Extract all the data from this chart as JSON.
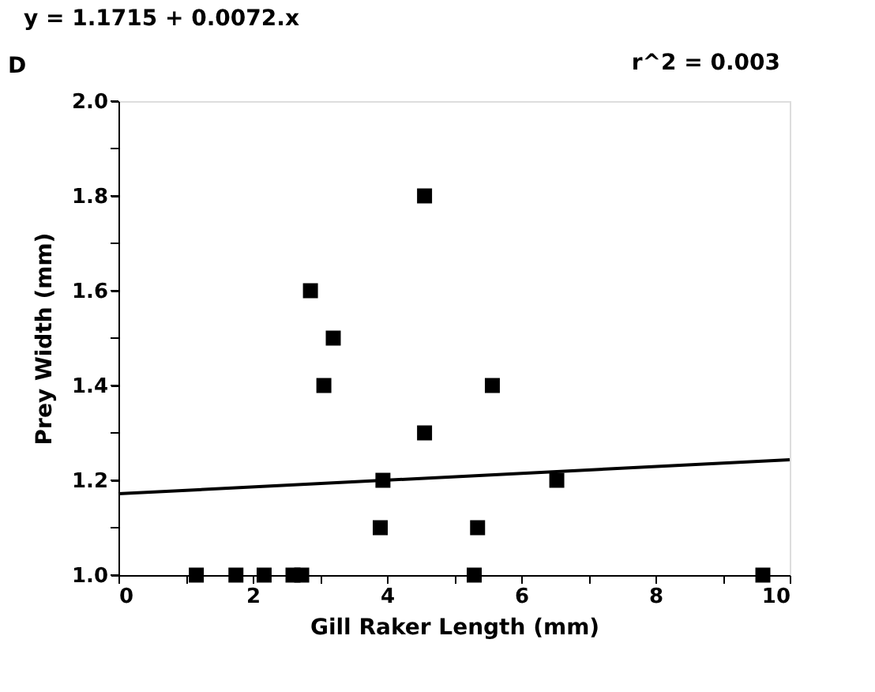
{
  "chart_data": {
    "type": "scatter",
    "title": "y = 1.1715 + 0.0072.x",
    "xlabel": "Gill Raker Length (mm)",
    "ylabel": "Prey Width (mm)",
    "annotations": [
      "D",
      "r^2 = 0.003"
    ],
    "series": [
      {
        "color": "#000000",
        "marker": "square",
        "x": [
          4.56,
          2.86,
          3.2,
          3.06,
          5.57,
          4.56,
          3.94,
          6.53,
          3.9,
          5.35,
          1.16,
          1.75,
          2.17,
          2.6,
          2.73,
          5.3,
          9.6
        ],
        "values": [
          1.8,
          1.6,
          1.5,
          1.4,
          1.4,
          1.3,
          1.2,
          1.2,
          1.1,
          1.1,
          1.0,
          1.0,
          1.0,
          1.0,
          1.0,
          1.0,
          1.0
        ]
      },
      {
        "type": "line",
        "color": "#000000",
        "marker": "none",
        "line_style": "solid",
        "x": [
          0,
          10
        ],
        "values": [
          1.1715,
          1.2435
        ]
      }
    ],
    "xlim": [
      0,
      10
    ],
    "ylim": [
      1.0,
      2.0
    ],
    "xticks": [
      0,
      {
        "value": 1,
        "label": null
      },
      2,
      {
        "value": 3,
        "label": null
      },
      4,
      {
        "value": 5,
        "label": null
      },
      6,
      {
        "value": 7,
        "label": null
      },
      8,
      {
        "value": 9,
        "label": null
      },
      10
    ],
    "yticks": [
      {
        "value": 1.0,
        "label": "1.0"
      },
      {
        "value": 1.1,
        "label": null
      },
      {
        "value": 1.2,
        "label": "1.2"
      },
      {
        "value": 1.3,
        "label": null
      },
      {
        "value": 1.4,
        "label": "1.4"
      },
      {
        "value": 1.5,
        "label": null
      },
      {
        "value": 1.6,
        "label": "1.6"
      },
      {
        "value": 1.7,
        "label": null
      },
      {
        "value": 1.8,
        "label": "1.8"
      },
      {
        "value": 1.9,
        "label": null
      },
      {
        "value": 2.0,
        "label": "2.0"
      }
    ],
    "grid": false
  }
}
